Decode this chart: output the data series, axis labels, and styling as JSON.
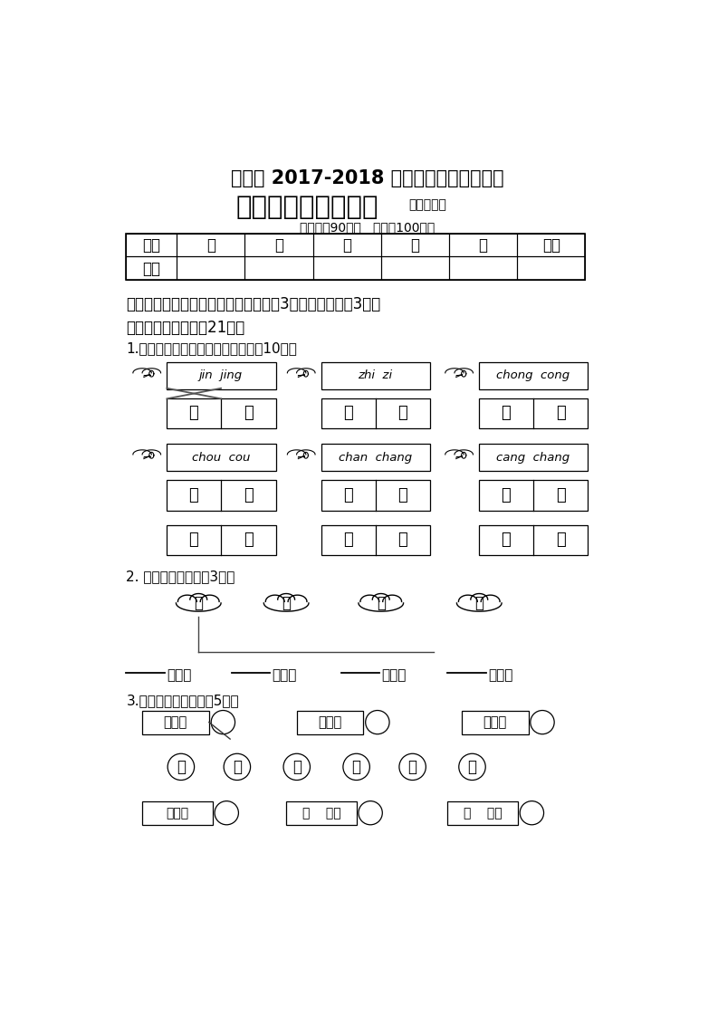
{
  "title1": "公安县 2017-2018 学年度上学期期末考试",
  "title2": "小学二年级语文试题",
  "title2_suffix": "（人教版）",
  "title3": "（时间：90分钟   总分：100分）",
  "table_headers": [
    "题号",
    "一",
    "二",
    "三",
    "四",
    "五",
    "总分"
  ],
  "section1": "一、把字写得漂亮、整洁，你就能得到3分的奖励哦！（3分）",
  "section2": "二、趣味连连看。（21分）",
  "subsection1": "1.把汉字和正确的音节连在一起。（10分）",
  "box1_pinyin": "jin  jing",
  "box2_pinyin": "zhi  zi",
  "box3_pinyin": "chong  cong",
  "box1_chars": [
    "培",
    "孖"
  ],
  "box2_chars": [
    "卜",
    "步"
  ],
  "box3_chars": [
    "乘",
    "巨"
  ],
  "box4_pinyin": "chou  cou",
  "box5_pinyin": "chan  chang",
  "box6_pinyin": "cang  chang",
  "box4_chars": [
    "艘",
    "屿"
  ],
  "box5_chars": [
    "剃",
    "茸"
  ],
  "box6_chars": [
    "伤",
    "螽"
  ],
  "subsection2": "2. 照样子连一连。（3分）",
  "cloud_labels": [
    "詿",
    "甩",
    "拔",
    "叟"
  ],
  "fill_labels": [
    "着肚皮",
    "着衣裳",
    "着尾巴",
    "着眼睛"
  ],
  "subsection3": "3.照样子连成词语。（5分）",
  "word_groups1_texts": [
    "朋小加",
    "宝群乡",
    "飞同舞"
  ],
  "word_groups2": [
    "虎",
    "瓜",
    "鸡",
    "圆",
    "色",
    "龙"
  ],
  "word_groups3_texts": [
    "抱乃乡",
    "加    添翼",
    "加    得水"
  ],
  "bg_color": "#ffffff",
  "text_color": "#000000"
}
